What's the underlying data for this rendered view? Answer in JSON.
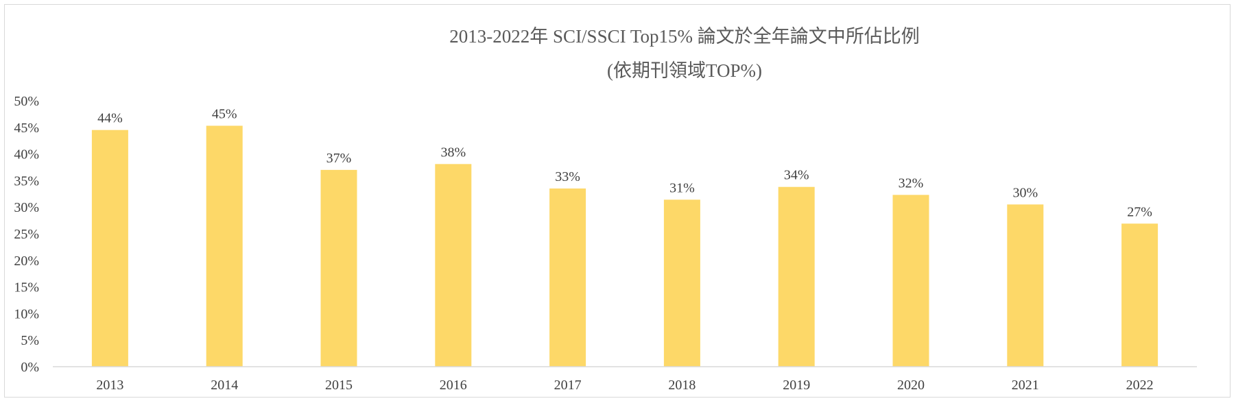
{
  "chart_data": {
    "type": "bar",
    "title": "2013-2022年 SCI/SSCI Top15% 論文於全年論文中所佔比例",
    "subtitle": "(依期刊領域TOP%)",
    "xlabel": "",
    "ylabel": "",
    "categories": [
      "2013",
      "2014",
      "2015",
      "2016",
      "2017",
      "2018",
      "2019",
      "2020",
      "2021",
      "2022"
    ],
    "values": [
      44.5,
      45.3,
      37.0,
      38.1,
      33.5,
      31.4,
      33.8,
      32.3,
      30.5,
      26.9
    ],
    "data_labels": [
      "44%",
      "45%",
      "37%",
      "38%",
      "33%",
      "31%",
      "34%",
      "32%",
      "30%",
      "27%"
    ],
    "ylim": [
      0,
      50
    ],
    "yticks": [
      0,
      5,
      10,
      15,
      20,
      25,
      30,
      35,
      40,
      45,
      50
    ],
    "ytick_labels": [
      "0%",
      "5%",
      "10%",
      "15%",
      "20%",
      "25%",
      "30%",
      "35%",
      "40%",
      "45%",
      "50%"
    ],
    "grid": false,
    "legend": "none",
    "bar_color": "#FDD868"
  }
}
